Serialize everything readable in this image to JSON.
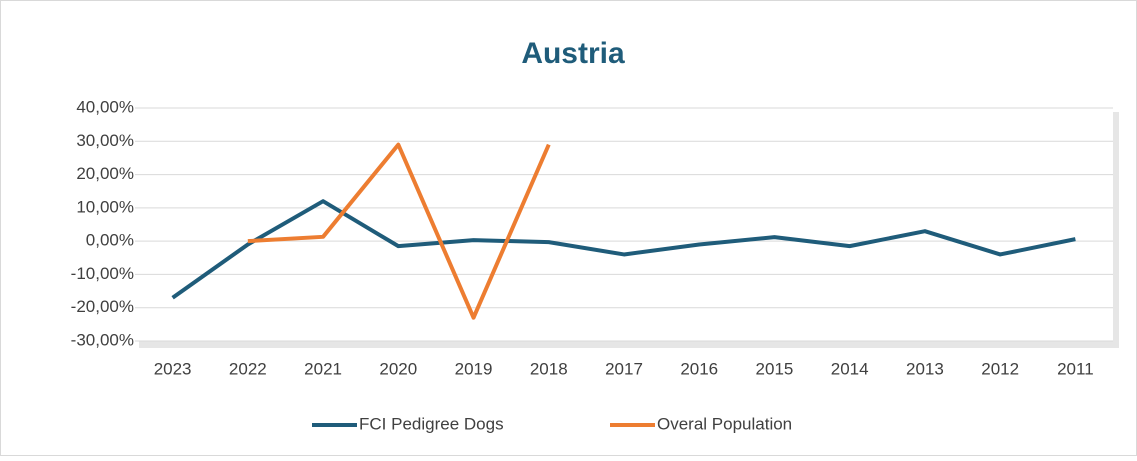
{
  "chart_data": {
    "type": "line",
    "title": "Austria",
    "categories": [
      "2023",
      "2022",
      "2021",
      "2020",
      "2019",
      "2018",
      "2017",
      "2016",
      "2015",
      "2014",
      "2013",
      "2012",
      "2011"
    ],
    "series": [
      {
        "name": "FCI Pedigree Dogs",
        "color": "#1f5c7a",
        "values": [
          -17,
          -1,
          12,
          -1.5,
          0.3,
          -0.3,
          -4,
          -1,
          1.2,
          -1.5,
          3,
          -4,
          0.6
        ]
      },
      {
        "name": "Overal Population",
        "color": "#ed7d31",
        "values": [
          null,
          0,
          1.3,
          29,
          -23,
          29,
          null,
          null,
          null,
          null,
          null,
          null,
          null
        ]
      }
    ],
    "ylim": [
      -30,
      40
    ],
    "yticks": [
      {
        "value": -30,
        "label": "-30,00%"
      },
      {
        "value": -20,
        "label": "-20,00%"
      },
      {
        "value": -10,
        "label": "-10,00%"
      },
      {
        "value": 0,
        "label": "0,00%"
      },
      {
        "value": 10,
        "label": "10,00%"
      },
      {
        "value": 20,
        "label": "20,00%"
      },
      {
        "value": 30,
        "label": "30,00%"
      },
      {
        "value": 40,
        "label": "40,00%"
      }
    ],
    "grid": true
  }
}
